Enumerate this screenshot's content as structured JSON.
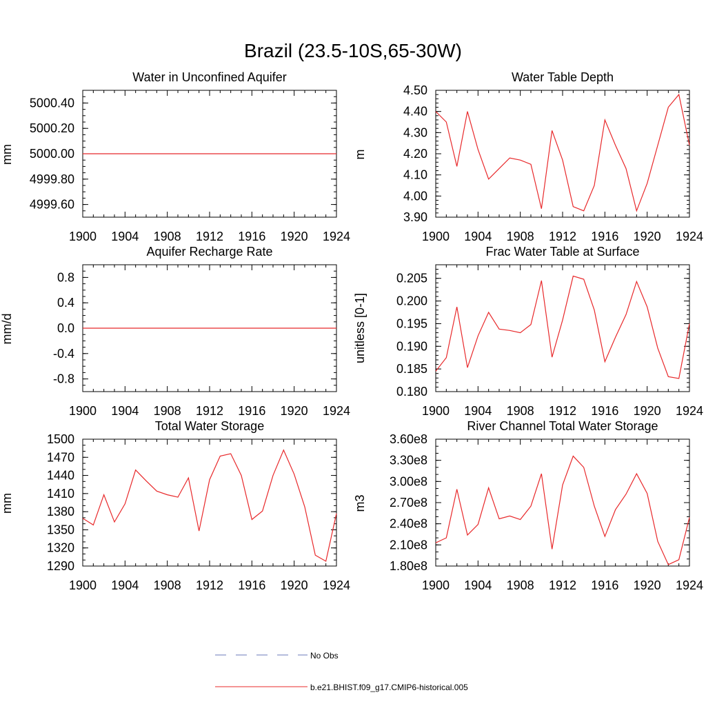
{
  "figure": {
    "title": "Brazil (23.5-10S,65-30W)"
  },
  "legend": {
    "entries": [
      {
        "label": "No Obs",
        "color": "#6a78b8",
        "style": "dashed"
      },
      {
        "label": "b.e21.BHIST.f09_g17.CMIP6-historical.005",
        "color": "#e8282a",
        "style": "solid"
      }
    ]
  },
  "chart_data": [
    {
      "type": "line",
      "title": "Water in Unconfined Aquifer",
      "ylabel": "mm",
      "xlim": [
        1900,
        1924
      ],
      "ylim": [
        4999.5,
        5000.5
      ],
      "xticks": [
        "1900",
        "1904",
        "1908",
        "1912",
        "1916",
        "1920",
        "1924"
      ],
      "yticks": [
        {
          "v": 4999.6,
          "label": "4999.60"
        },
        {
          "v": 4999.8,
          "label": "4999.80"
        },
        {
          "v": 5000.0,
          "label": "5000.00"
        },
        {
          "v": 5000.2,
          "label": "5000.20"
        },
        {
          "v": 5000.4,
          "label": "5000.40"
        }
      ],
      "yminor": 0.05,
      "series": [
        {
          "color": "#e8282a",
          "x": [
            1900,
            1901,
            1902,
            1903,
            1904,
            1905,
            1906,
            1907,
            1908,
            1909,
            1910,
            1911,
            1912,
            1913,
            1914,
            1915,
            1916,
            1917,
            1918,
            1919,
            1920,
            1921,
            1922,
            1923,
            1924
          ],
          "y": [
            5000,
            5000,
            5000,
            5000,
            5000,
            5000,
            5000,
            5000,
            5000,
            5000,
            5000,
            5000,
            5000,
            5000,
            5000,
            5000,
            5000,
            5000,
            5000,
            5000,
            5000,
            5000,
            5000,
            5000,
            5000
          ]
        }
      ]
    },
    {
      "type": "line",
      "title": "Water Table Depth",
      "ylabel": "m",
      "xlim": [
        1900,
        1924
      ],
      "ylim": [
        3.9,
        4.5
      ],
      "xticks": [
        "1900",
        "1904",
        "1908",
        "1912",
        "1916",
        "1920",
        "1924"
      ],
      "yticks": [
        {
          "v": 3.9,
          "label": "3.90"
        },
        {
          "v": 4.0,
          "label": "4.00"
        },
        {
          "v": 4.1,
          "label": "4.10"
        },
        {
          "v": 4.2,
          "label": "4.20"
        },
        {
          "v": 4.3,
          "label": "4.30"
        },
        {
          "v": 4.4,
          "label": "4.40"
        },
        {
          "v": 4.5,
          "label": "4.50"
        }
      ],
      "yminor": 0.02,
      "series": [
        {
          "color": "#e8282a",
          "x": [
            1900,
            1901,
            1902,
            1903,
            1904,
            1905,
            1906,
            1907,
            1908,
            1909,
            1910,
            1911,
            1912,
            1913,
            1914,
            1915,
            1916,
            1917,
            1918,
            1919,
            1920,
            1921,
            1922,
            1923,
            1924
          ],
          "y": [
            4.4,
            4.35,
            4.14,
            4.4,
            4.22,
            4.08,
            4.13,
            4.18,
            4.17,
            4.15,
            3.94,
            4.31,
            4.17,
            3.95,
            3.93,
            4.05,
            4.36,
            4.24,
            4.13,
            3.93,
            4.06,
            4.24,
            4.42,
            4.48,
            4.24
          ]
        }
      ]
    },
    {
      "type": "line",
      "title": "Aquifer Recharge Rate",
      "ylabel": "mm/d",
      "xlim": [
        1900,
        1924
      ],
      "ylim": [
        -1.0,
        1.0
      ],
      "xticks": [
        "1900",
        "1904",
        "1908",
        "1912",
        "1916",
        "1920",
        "1924"
      ],
      "yticks": [
        {
          "v": -0.8,
          "label": "-0.8"
        },
        {
          "v": -0.4,
          "label": "-0.4"
        },
        {
          "v": 0.0,
          "label": "0.0"
        },
        {
          "v": 0.4,
          "label": "0.4"
        },
        {
          "v": 0.8,
          "label": "0.8"
        }
      ],
      "yminor": 0.1,
      "series": [
        {
          "color": "#e8282a",
          "x": [
            1900,
            1901,
            1902,
            1903,
            1904,
            1905,
            1906,
            1907,
            1908,
            1909,
            1910,
            1911,
            1912,
            1913,
            1914,
            1915,
            1916,
            1917,
            1918,
            1919,
            1920,
            1921,
            1922,
            1923,
            1924
          ],
          "y": [
            0,
            0,
            0,
            0,
            0,
            0,
            0,
            0,
            0,
            0,
            0,
            0,
            0,
            0,
            0,
            0,
            0,
            0,
            0,
            0,
            0,
            0,
            0,
            0,
            0
          ]
        }
      ]
    },
    {
      "type": "line",
      "title": "Frac Water Table at Surface",
      "ylabel": "unitless [0-1]",
      "xlim": [
        1900,
        1924
      ],
      "ylim": [
        0.18,
        0.208
      ],
      "xticks": [
        "1900",
        "1904",
        "1908",
        "1912",
        "1916",
        "1920",
        "1924"
      ],
      "yticks": [
        {
          "v": 0.18,
          "label": "0.180"
        },
        {
          "v": 0.185,
          "label": "0.185"
        },
        {
          "v": 0.19,
          "label": "0.190"
        },
        {
          "v": 0.195,
          "label": "0.195"
        },
        {
          "v": 0.2,
          "label": "0.200"
        },
        {
          "v": 0.205,
          "label": "0.205"
        }
      ],
      "yminor": 0.001,
      "series": [
        {
          "color": "#e8282a",
          "x": [
            1900,
            1901,
            1902,
            1903,
            1904,
            1905,
            1906,
            1907,
            1908,
            1909,
            1910,
            1911,
            1912,
            1913,
            1914,
            1915,
            1916,
            1917,
            1918,
            1919,
            1920,
            1921,
            1922,
            1923,
            1924
          ],
          "y": [
            0.1845,
            0.1875,
            0.1987,
            0.1853,
            0.1923,
            0.1975,
            0.1938,
            0.1935,
            0.193,
            0.1948,
            0.2045,
            0.1876,
            0.1958,
            0.2055,
            0.2048,
            0.198,
            0.1866,
            0.192,
            0.197,
            0.2043,
            0.1987,
            0.1896,
            0.1833,
            0.1829,
            0.195
          ]
        }
      ]
    },
    {
      "type": "line",
      "title": "Total Water Storage",
      "ylabel": "mm",
      "xlim": [
        1900,
        1924
      ],
      "ylim": [
        1290,
        1500
      ],
      "xticks": [
        "1900",
        "1904",
        "1908",
        "1912",
        "1916",
        "1920",
        "1924"
      ],
      "yticks": [
        {
          "v": 1290,
          "label": "1290"
        },
        {
          "v": 1320,
          "label": "1320"
        },
        {
          "v": 1350,
          "label": "1350"
        },
        {
          "v": 1380,
          "label": "1380"
        },
        {
          "v": 1410,
          "label": "1410"
        },
        {
          "v": 1440,
          "label": "1440"
        },
        {
          "v": 1470,
          "label": "1470"
        },
        {
          "v": 1500,
          "label": "1500"
        }
      ],
      "yminor": 10,
      "series": [
        {
          "color": "#e8282a",
          "x": [
            1900,
            1901,
            1902,
            1903,
            1904,
            1905,
            1906,
            1907,
            1908,
            1909,
            1910,
            1911,
            1912,
            1913,
            1914,
            1915,
            1916,
            1917,
            1918,
            1919,
            1920,
            1921,
            1922,
            1923,
            1924
          ],
          "y": [
            1369,
            1358,
            1408,
            1363,
            1393,
            1449,
            1431,
            1414,
            1408,
            1404,
            1436,
            1348,
            1433,
            1472,
            1476,
            1440,
            1367,
            1381,
            1440,
            1482,
            1442,
            1388,
            1308,
            1298,
            1377
          ]
        }
      ]
    },
    {
      "type": "line",
      "title": "River Channel Total Water Storage",
      "ylabel": "m3",
      "xlim": [
        1900,
        1924
      ],
      "ylim": [
        180000000.0,
        360000000.0
      ],
      "xticks": [
        "1900",
        "1904",
        "1908",
        "1912",
        "1916",
        "1920",
        "1924"
      ],
      "yticks": [
        {
          "v": 180000000.0,
          "label": "1.80e8"
        },
        {
          "v": 210000000.0,
          "label": "2.10e8"
        },
        {
          "v": 240000000.0,
          "label": "2.40e8"
        },
        {
          "v": 270000000.0,
          "label": "2.70e8"
        },
        {
          "v": 300000000.0,
          "label": "3.00e8"
        },
        {
          "v": 330000000.0,
          "label": "3.30e8"
        },
        {
          "v": 360000000.0,
          "label": "3.60e8"
        }
      ],
      "yminor": 10000000.0,
      "series": [
        {
          "color": "#e8282a",
          "x": [
            1900,
            1901,
            1902,
            1903,
            1904,
            1905,
            1906,
            1907,
            1908,
            1909,
            1910,
            1911,
            1912,
            1913,
            1914,
            1915,
            1916,
            1917,
            1918,
            1919,
            1920,
            1921,
            1922,
            1923,
            1924
          ],
          "y": [
            213000000.0,
            220000000.0,
            289000000.0,
            224000000.0,
            239000000.0,
            291000000.0,
            247000000.0,
            251000000.0,
            246000000.0,
            265000000.0,
            311000000.0,
            204000000.0,
            295000000.0,
            336000000.0,
            320000000.0,
            265000000.0,
            222000000.0,
            260000000.0,
            282000000.0,
            311000000.0,
            283000000.0,
            215000000.0,
            182000000.0,
            189000000.0,
            249000000.0
          ]
        }
      ]
    }
  ]
}
